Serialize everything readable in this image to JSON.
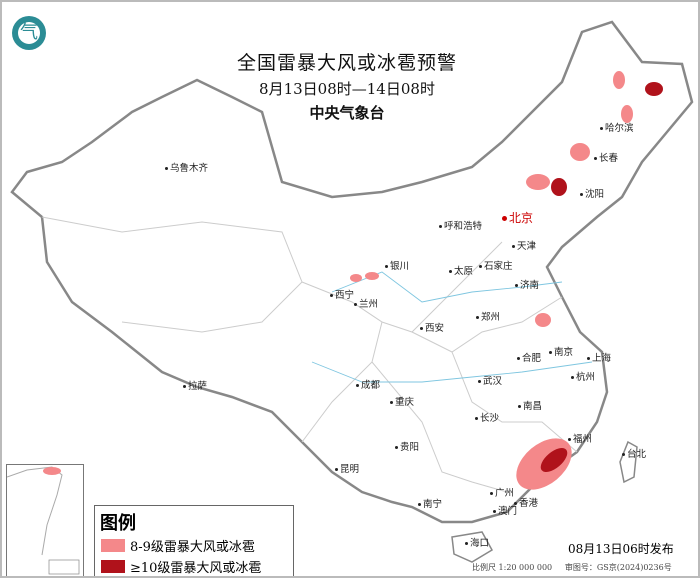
{
  "header": {
    "title": "全国雷暴大风或冰雹预警",
    "period": "8月13日08时—14日08时",
    "issuer": "中央气象台"
  },
  "logo": {
    "icon": "cma-logo-icon"
  },
  "cities": [
    {
      "name": "乌鲁木齐"
    },
    {
      "name": "哈尔滨"
    },
    {
      "name": "长春"
    },
    {
      "name": "沈阳"
    },
    {
      "name": "北京"
    },
    {
      "name": "天津"
    },
    {
      "name": "呼和浩特"
    },
    {
      "name": "石家庄"
    },
    {
      "name": "太原"
    },
    {
      "name": "济南"
    },
    {
      "name": "银川"
    },
    {
      "name": "兰州"
    },
    {
      "name": "西宁"
    },
    {
      "name": "郑州"
    },
    {
      "name": "西安"
    },
    {
      "name": "合肥"
    },
    {
      "name": "南京"
    },
    {
      "name": "上海"
    },
    {
      "name": "杭州"
    },
    {
      "name": "武汉"
    },
    {
      "name": "成都"
    },
    {
      "name": "拉萨"
    },
    {
      "name": "重庆"
    },
    {
      "name": "长沙"
    },
    {
      "name": "南昌"
    },
    {
      "name": "福州"
    },
    {
      "name": "台北"
    },
    {
      "name": "贵阳"
    },
    {
      "name": "昆明"
    },
    {
      "name": "南宁"
    },
    {
      "name": "广州"
    },
    {
      "name": "香港"
    },
    {
      "name": "澳门"
    },
    {
      "name": "海口"
    }
  ],
  "legend": {
    "title": "图例",
    "items": [
      {
        "label": "8-9级雷暴大风或冰雹",
        "color": "#f4888a"
      },
      {
        "label": "≥10级雷暴大风或冰雹",
        "color": "#b0121b"
      }
    ]
  },
  "footer": {
    "issued": "08月13日06时发布",
    "scale": "比例尺 1:20 000 000",
    "map_no": "审图号：GS京(2024)0236号"
  }
}
